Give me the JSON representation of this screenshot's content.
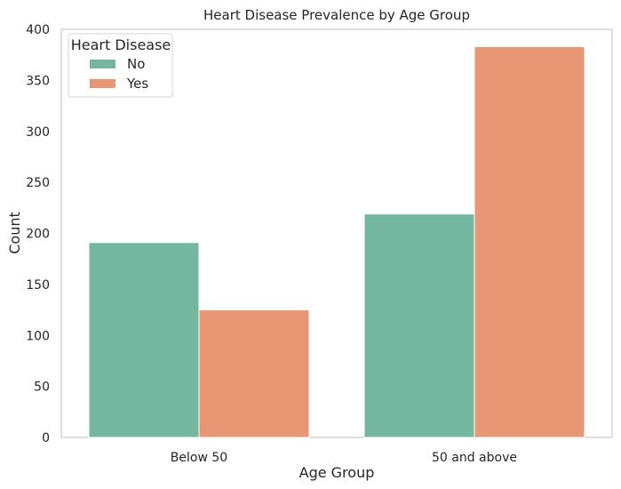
{
  "chart_data": {
    "type": "bar",
    "title": "Heart Disease Prevalence by Age Group",
    "xlabel": "Age Group",
    "ylabel": "Count",
    "categories": [
      "Below 50",
      "50 and above"
    ],
    "series": [
      {
        "name": "No",
        "values": [
          191,
          219
        ],
        "color": "#73b7a0"
      },
      {
        "name": "Yes",
        "values": [
          125,
          383
        ],
        "color": "#e99674"
      }
    ],
    "ylim": [
      0,
      400
    ],
    "yticks": [
      0,
      50,
      100,
      150,
      200,
      250,
      300,
      350,
      400
    ],
    "grid": false,
    "legend": {
      "title": "Heart Disease",
      "placement": "top-left"
    }
  }
}
